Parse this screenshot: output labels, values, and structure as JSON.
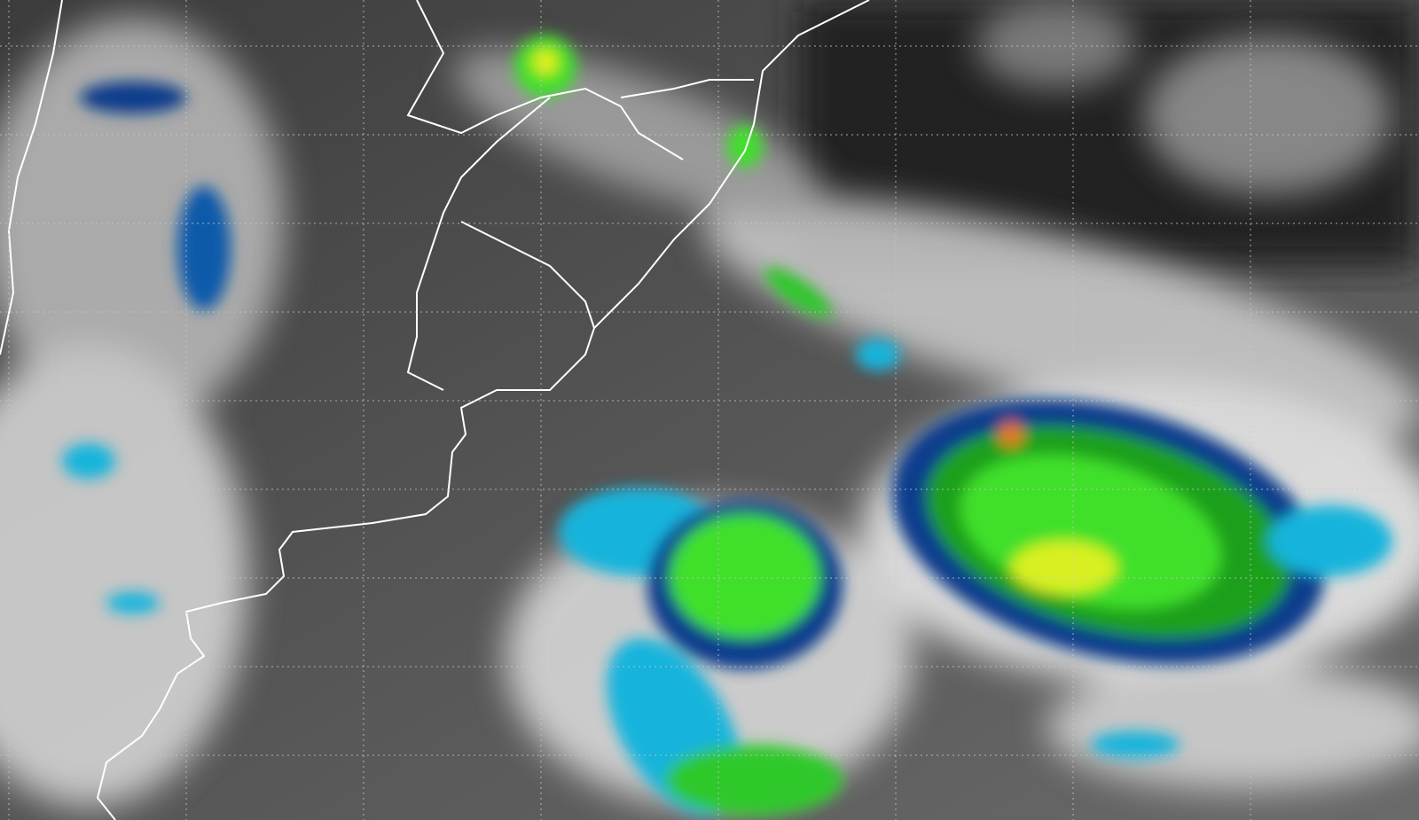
{
  "map": {
    "kind": "infrared satellite image with enhanced cloud-top colour scale",
    "colors": {
      "background_dark": "#2a2a2a",
      "ocean_gray": "#5a5a5a",
      "cloud_white": "#f2f2f2",
      "enhance_cyan": "#14b4dc",
      "enhance_blue": "#0a3c8c",
      "enhance_navy": "#061a50",
      "enhance_green": "#2fdc1e",
      "enhance_yellow": "#e6f01e",
      "enhance_orange": "#e6781e",
      "border_line": "#ffffff",
      "grid_line": "#c8c8c8"
    },
    "grid": {
      "visible": true,
      "style": "dotted"
    },
    "borders": {
      "visible": true
    }
  }
}
